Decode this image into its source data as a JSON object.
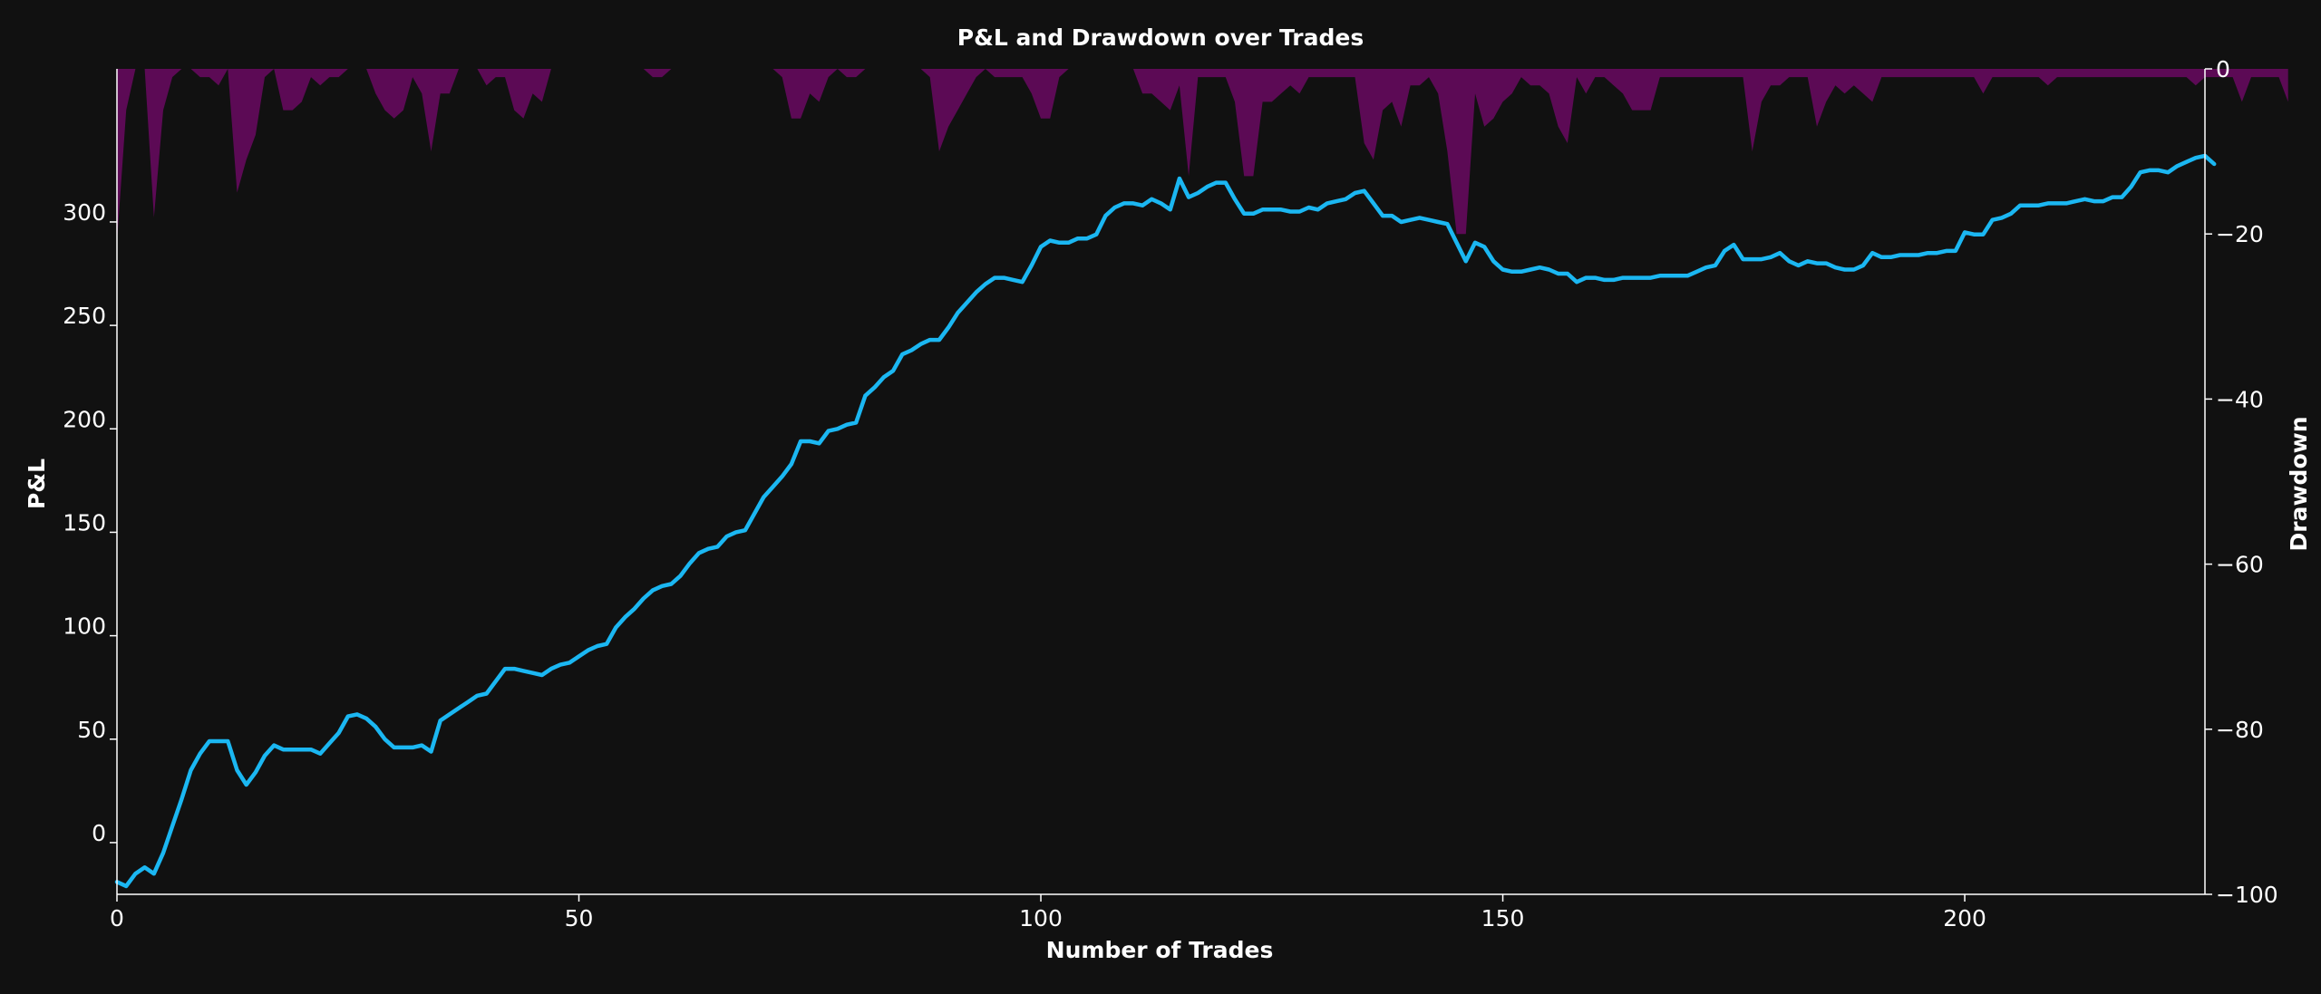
{
  "chart_data": {
    "type": "line",
    "title": "P&L and Drawdown over Trades",
    "xlabel": "Number of Trades",
    "ylabel": "P&L",
    "y2label": "Drawdown",
    "xlim": [
      0,
      226
    ],
    "ylim": [
      -25,
      374
    ],
    "y2lim": [
      -100,
      0
    ],
    "xticks": [
      0,
      50,
      100,
      150,
      200
    ],
    "yticks": [
      0,
      50,
      100,
      150,
      200,
      250,
      300
    ],
    "y2ticks": [
      0,
      -20,
      -40,
      -60,
      -80,
      -100
    ],
    "grid": false,
    "colors": {
      "background": "#111111",
      "pnl_line": "#1bb7f2",
      "drawdown_fill": "#5c0a55",
      "axis": "#ffffff"
    },
    "series": [
      {
        "type": "line",
        "axis": "left",
        "values": [
          -19,
          -21,
          -15,
          -12,
          -15,
          -5,
          8,
          21,
          35,
          43,
          49,
          49,
          49,
          35,
          28,
          34,
          42,
          47,
          45,
          45,
          45,
          45,
          43,
          48,
          53,
          61,
          62,
          60,
          56,
          50,
          46,
          46,
          46,
          47,
          44,
          59,
          62,
          65,
          68,
          71,
          72,
          78,
          84,
          84,
          83,
          82,
          81,
          84,
          86,
          87,
          90,
          93,
          95,
          96,
          104,
          109,
          113,
          118,
          122,
          124,
          125,
          129,
          135,
          140,
          142,
          143,
          148,
          150,
          151,
          159,
          167,
          172,
          177,
          183,
          194,
          194,
          193,
          199,
          200,
          202,
          203,
          216,
          220,
          225,
          228,
          236,
          238,
          241,
          243,
          243,
          249,
          256,
          261,
          266,
          270,
          273,
          273,
          272,
          271,
          279,
          288,
          291,
          290,
          290,
          292,
          292,
          294,
          303,
          307,
          309,
          309,
          308,
          311,
          309,
          306,
          321,
          312,
          314,
          317,
          319,
          319,
          311,
          304,
          304,
          306,
          306,
          306,
          305,
          305,
          307,
          306,
          309,
          310,
          311,
          314,
          315,
          309,
          303,
          303,
          300,
          301,
          302,
          301,
          300,
          299,
          290,
          281,
          290,
          288,
          281,
          277,
          276,
          276,
          277,
          278,
          277,
          275,
          275,
          271,
          273,
          273,
          272,
          272,
          273,
          273,
          273,
          273,
          274,
          274,
          274,
          274,
          276,
          278,
          279,
          286,
          289,
          282,
          282,
          282,
          283,
          285,
          281,
          279,
          281,
          280,
          280,
          278,
          277,
          277,
          279,
          285,
          283,
          283,
          284,
          284,
          284,
          285,
          285,
          286,
          286,
          295,
          294,
          294,
          301,
          302,
          304,
          308,
          308,
          308,
          309,
          309,
          309,
          310,
          311,
          310,
          310,
          312,
          312,
          317,
          324,
          325,
          325,
          324,
          327,
          329,
          331,
          332,
          328
        ]
      },
      {
        "type": "area",
        "axis": "right",
        "values": [
          -21,
          -5,
          0,
          0,
          -18,
          -5,
          -1,
          0,
          0,
          -1,
          -1,
          -2,
          0,
          -15,
          -11,
          -8,
          -1,
          0,
          -5,
          -5,
          -4,
          -1,
          -2,
          -1,
          -1,
          0,
          0,
          0,
          -3,
          -5,
          -6,
          -5,
          -1,
          -3,
          -10,
          -3,
          -3,
          0,
          0,
          0,
          -2,
          -1,
          -1,
          -5,
          -6,
          -3,
          -4,
          0,
          0,
          0,
          0,
          0,
          0,
          0,
          0,
          0,
          0,
          0,
          -1,
          -1,
          0,
          0,
          0,
          0,
          0,
          0,
          0,
          0,
          0,
          0,
          0,
          0,
          -1,
          -6,
          -6,
          -3,
          -4,
          -1,
          0,
          -1,
          -1,
          0,
          0,
          0,
          0,
          0,
          0,
          0,
          -1,
          -10,
          -7,
          -5,
          -3,
          -1,
          0,
          -1,
          -1,
          -1,
          -1,
          -3,
          -6,
          -6,
          -1,
          0,
          0,
          0,
          0,
          0,
          0,
          0,
          0,
          -3,
          -3,
          -4,
          -5,
          -2,
          -13,
          -1,
          -1,
          -1,
          -1,
          -4,
          -13,
          -13,
          -4,
          -4,
          -3,
          -2,
          -3,
          -1,
          -1,
          -1,
          -1,
          -1,
          -1,
          -9,
          -11,
          -5,
          -4,
          -7,
          -2,
          -2,
          -1,
          -3,
          -10,
          -20,
          -20,
          -3,
          -7,
          -6,
          -4,
          -3,
          -1,
          -2,
          -2,
          -3,
          -7,
          -9,
          -1,
          -3,
          -1,
          -1,
          -2,
          -3,
          -5,
          -5,
          -5,
          -1,
          -1,
          -1,
          -1,
          -1,
          -1,
          -1,
          -1,
          -1,
          -1,
          -10,
          -4,
          -2,
          -2,
          -1,
          -1,
          -1,
          -7,
          -4,
          -2,
          -3,
          -2,
          -3,
          -4,
          -1,
          -1,
          -1,
          -1,
          -1,
          -1,
          -1,
          -1,
          -1,
          -1,
          -1,
          -3,
          -1,
          -1,
          -1,
          -1,
          -1,
          -1,
          -2,
          -1,
          -1,
          -1,
          -1,
          -1,
          -1,
          -1,
          -1,
          -1,
          -1,
          -1,
          -1,
          -1,
          -1,
          -1,
          -2,
          -1,
          -1,
          -1,
          -1,
          -4,
          -1,
          -1,
          -1,
          -1,
          -4
        ]
      }
    ]
  }
}
